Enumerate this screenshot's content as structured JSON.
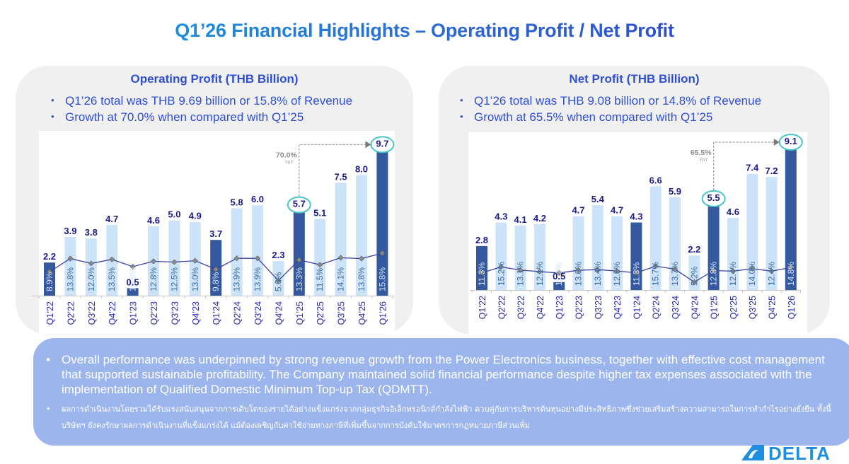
{
  "title": "Q1’26 Financial Highlights – Operating Profit / Net Profit",
  "colors": {
    "bar_light": "#cce3fa",
    "bar_dark": "#34599e",
    "value_label": "#1a1a8c",
    "pct_label_light": "#3c6a9a",
    "pct_label_dark": "#d6e4ff",
    "line": "#3d44a8",
    "marker": "#8a8a8a",
    "highlight_circle": "#49c6c6",
    "annotation_gray": "#8c8c8c",
    "panel_bg": "#f0f0f1",
    "bottom_bg": "#9db5ed",
    "title_blue": "#2f4fd1",
    "logo_blue": "#1e8ee0"
  },
  "left_panel": {
    "title": "Operating Profit (THB Billion)",
    "bullets": [
      "Q1’26 total was THB 9.69 billion or 15.8% of Revenue",
      "Growth at 70.0% when compared with Q1’25"
    ]
  },
  "right_panel": {
    "title": "Net Profit (THB Billion)",
    "bullets": [
      "Q1’26 total was THB 9.08 billion or 14.8% of Revenue",
      "Growth at 65.5% when compared with Q1’25"
    ]
  },
  "bottom": {
    "english": "Overall performance was underpinned by strong revenue growth from the Power Electronics business, together with effective cost management that supported sustainable profitability. The Company maintained solid financial performance despite higher tax expenses associated with the implementation of Qualified Domestic Minimum Top-up Tax (QDMTT).",
    "thai": "ผลการดำเนินงานโดยรวมได้รับแรงสนับสนุนจากการเติบโตของรายได้อย่างแข็งแกร่งจากกลุ่มธุรกิจอิเล็กทรอนิกส์กำลังไฟฟ้า ควบคู่กับการบริหารต้นทุนอย่างมีประสิทธิภาพซึ่งช่วยเสริมสร้างความสามารถในการทำกำไรอย่างยั่งยืน ทั้งนี้ บริษัทฯ ยังคงรักษาผลการดำเนินงานที่แข็งแกร่งได้ แม้ต้องเผชิญกับค่าใช้จ่ายทางภาษีที่เพิ่มขึ้นจากการบังคับใช้มาตรการกฎหมายภาษีส่วนเพิ่ม"
  },
  "logo": {
    "text": "DELTA"
  },
  "chart_data": [
    {
      "type": "bar",
      "title": "Operating Profit (THB Billion)",
      "categories": [
        "Q1'22",
        "Q2'22",
        "Q3'22",
        "Q4'22",
        "Q1'23",
        "Q2'23",
        "Q3'23",
        "Q4'23",
        "Q1'24",
        "Q2'24",
        "Q3'24",
        "Q4'24",
        "Q1'25",
        "Q2'25",
        "Q3'25",
        "Q4'25",
        "Q1'26"
      ],
      "series": [
        {
          "name": "Operating Profit (THB Billion)",
          "type": "bar",
          "values": [
            2.2,
            3.9,
            3.8,
            4.7,
            0.5,
            4.6,
            5.0,
            4.9,
            3.7,
            5.8,
            6.0,
            2.3,
            5.7,
            5.1,
            7.5,
            8.0,
            9.7
          ],
          "value_labels": [
            "2.2",
            "3.9",
            "3.8",
            "4.7",
            "0.5",
            "4.6",
            "5.0",
            "4.9",
            "3.7",
            "5.8",
            "6.0",
            "2.3",
            "5.7",
            "5.1",
            "7.5",
            "8.0",
            "9.7"
          ]
        },
        {
          "name": "Operating Profit Margin (% of Revenue)",
          "type": "line",
          "values": [
            8.9,
            13.8,
            12.0,
            13.5,
            10.8,
            12.8,
            12.5,
            13.0,
            9.8,
            13.9,
            13.9,
            5.6,
            13.3,
            11.5,
            14.1,
            13.8,
            15.8
          ],
          "value_labels": [
            "8.9%",
            "13.8%",
            "12.0%",
            "13.5%",
            "10.8%",
            "12.8%",
            "12.5%",
            "13.0%",
            "9.8%",
            "13.9%",
            "13.9%",
            "5.6%",
            "13.3%",
            "11.5%",
            "14.1%",
            "13.8%",
            "15.8%"
          ]
        }
      ],
      "highlighted_q1": [
        0,
        4,
        8,
        12,
        16
      ],
      "circled": [
        12,
        16
      ],
      "annotation": {
        "from": "Q1'25",
        "to": "Q1'26",
        "value": "70.0%",
        "sub": "YoY"
      },
      "ylim": [
        0,
        10
      ],
      "xlabel": "",
      "ylabel": "",
      "grid": false,
      "legend": "none"
    },
    {
      "type": "bar",
      "title": "Net Profit (THB Billion)",
      "categories": [
        "Q1'22",
        "Q2'22",
        "Q3'22",
        "Q4'22",
        "Q1'23",
        "Q2'23",
        "Q3'23",
        "Q4'23",
        "Q1'24",
        "Q2'24",
        "Q3'24",
        "Q4'24",
        "Q1'25",
        "Q2'25",
        "Q3'25",
        "Q4'25",
        "Q1'26"
      ],
      "series": [
        {
          "name": "Net Profit (THB Billion)",
          "type": "bar",
          "values": [
            2.8,
            4.3,
            4.1,
            4.2,
            0.5,
            4.7,
            5.4,
            4.7,
            4.3,
            6.6,
            5.9,
            2.2,
            5.5,
            4.6,
            7.4,
            7.2,
            9.1
          ],
          "value_labels": [
            "2.8",
            "4.3",
            "4.1",
            "4.2",
            "0.5",
            "4.7",
            "5.4",
            "4.7",
            "4.3",
            "6.6",
            "5.9",
            "2.2",
            "5.5",
            "4.6",
            "7.4",
            "7.2",
            "9.1"
          ]
        },
        {
          "name": "Net Profit Margin (% of Revenue)",
          "type": "line",
          "values": [
            11.3,
            15.2,
            13.1,
            12.1,
            11.2,
            13.0,
            13.4,
            12.5,
            11.3,
            15.7,
            13.7,
            5.2,
            12.8,
            12.4,
            14.0,
            12.4,
            14.8
          ],
          "value_labels": [
            "11.3%",
            "15.2%",
            "13.1%",
            "12.1%",
            "11.2%",
            "13.0%",
            "13.4%",
            "12.5%",
            "11.3%",
            "15.7%",
            "13.7%",
            "5.2%",
            "12.8%",
            "12.4%",
            "14.0%",
            "12.4%",
            "14.8%"
          ]
        }
      ],
      "highlighted_q1": [
        0,
        4,
        8,
        12,
        16
      ],
      "circled": [
        12,
        16
      ],
      "annotation": {
        "from": "Q1'25",
        "to": "Q1'26",
        "value": "65.5%",
        "sub": "YoY"
      },
      "ylim": [
        0,
        10
      ],
      "xlabel": "",
      "ylabel": "",
      "grid": false,
      "legend": "none"
    }
  ]
}
